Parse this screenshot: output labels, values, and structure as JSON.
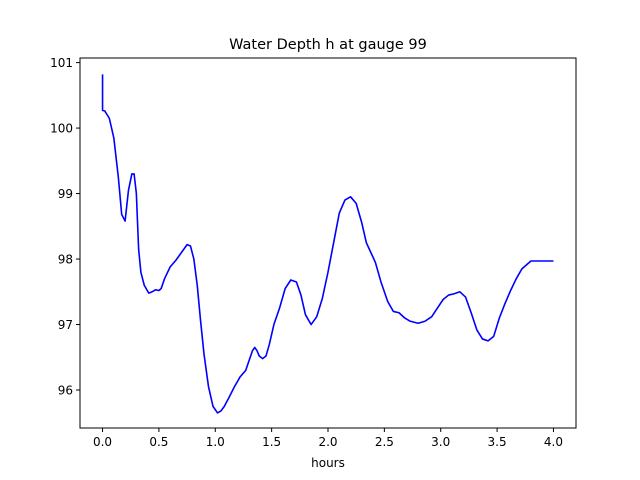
{
  "chart_data": {
    "type": "line",
    "title": "Water Depth h at gauge 99",
    "xlabel": "hours",
    "ylabel": "",
    "xlim": [
      -0.2,
      4.2
    ],
    "ylim": [
      95.42,
      101.07
    ],
    "xticks": [
      0.0,
      0.5,
      1.0,
      1.5,
      2.0,
      2.5,
      3.0,
      3.5,
      4.0
    ],
    "xtick_labels": [
      "0.0",
      "0.5",
      "1.0",
      "1.5",
      "2.0",
      "2.5",
      "3.0",
      "3.5",
      "4.0"
    ],
    "yticks": [
      96,
      97,
      98,
      99,
      100,
      101
    ],
    "ytick_labels": [
      "96",
      "97",
      "98",
      "99",
      "100",
      "101"
    ],
    "grid": false,
    "series": [
      {
        "color": "#0000ff",
        "x": [
          0.0,
          0.0,
          0.0,
          0.02,
          0.06,
          0.1,
          0.14,
          0.17,
          0.2,
          0.23,
          0.26,
          0.28,
          0.3,
          0.32,
          0.34,
          0.37,
          0.41,
          0.44,
          0.47,
          0.5,
          0.52,
          0.55,
          0.6,
          0.65,
          0.7,
          0.75,
          0.78,
          0.81,
          0.84,
          0.87,
          0.9,
          0.94,
          0.98,
          1.02,
          1.05,
          1.08,
          1.12,
          1.17,
          1.22,
          1.27,
          1.3,
          1.33,
          1.35,
          1.37,
          1.39,
          1.42,
          1.45,
          1.48,
          1.52,
          1.57,
          1.62,
          1.67,
          1.72,
          1.76,
          1.8,
          1.85,
          1.9,
          1.95,
          2.0,
          2.05,
          2.1,
          2.15,
          2.2,
          2.25,
          2.3,
          2.34,
          2.38,
          2.42,
          2.47,
          2.53,
          2.58,
          2.63,
          2.68,
          2.73,
          2.8,
          2.86,
          2.92,
          2.97,
          3.02,
          3.07,
          3.12,
          3.17,
          3.22,
          3.27,
          3.32,
          3.37,
          3.42,
          3.47,
          3.52,
          3.57,
          3.62,
          3.67,
          3.72,
          3.8,
          3.88,
          3.95,
          4.0
        ],
        "y": [
          100.82,
          100.28,
          100.27,
          100.26,
          100.15,
          99.85,
          99.25,
          98.68,
          98.58,
          99.05,
          99.3,
          99.3,
          99.0,
          98.15,
          97.8,
          97.6,
          97.48,
          97.5,
          97.53,
          97.52,
          97.55,
          97.7,
          97.88,
          97.98,
          98.1,
          98.22,
          98.2,
          98.0,
          97.6,
          97.05,
          96.55,
          96.05,
          95.75,
          95.65,
          95.68,
          95.75,
          95.88,
          96.05,
          96.2,
          96.3,
          96.45,
          96.6,
          96.65,
          96.6,
          96.52,
          96.48,
          96.52,
          96.7,
          97.0,
          97.25,
          97.55,
          97.68,
          97.65,
          97.45,
          97.15,
          97.0,
          97.12,
          97.4,
          97.8,
          98.25,
          98.7,
          98.9,
          98.95,
          98.85,
          98.55,
          98.25,
          98.1,
          97.95,
          97.65,
          97.35,
          97.2,
          97.18,
          97.1,
          97.05,
          97.02,
          97.05,
          97.12,
          97.25,
          97.38,
          97.45,
          97.47,
          97.5,
          97.42,
          97.18,
          96.92,
          96.78,
          96.75,
          96.82,
          97.1,
          97.32,
          97.52,
          97.7,
          97.85,
          97.97,
          97.97,
          97.97,
          97.97
        ]
      }
    ]
  }
}
